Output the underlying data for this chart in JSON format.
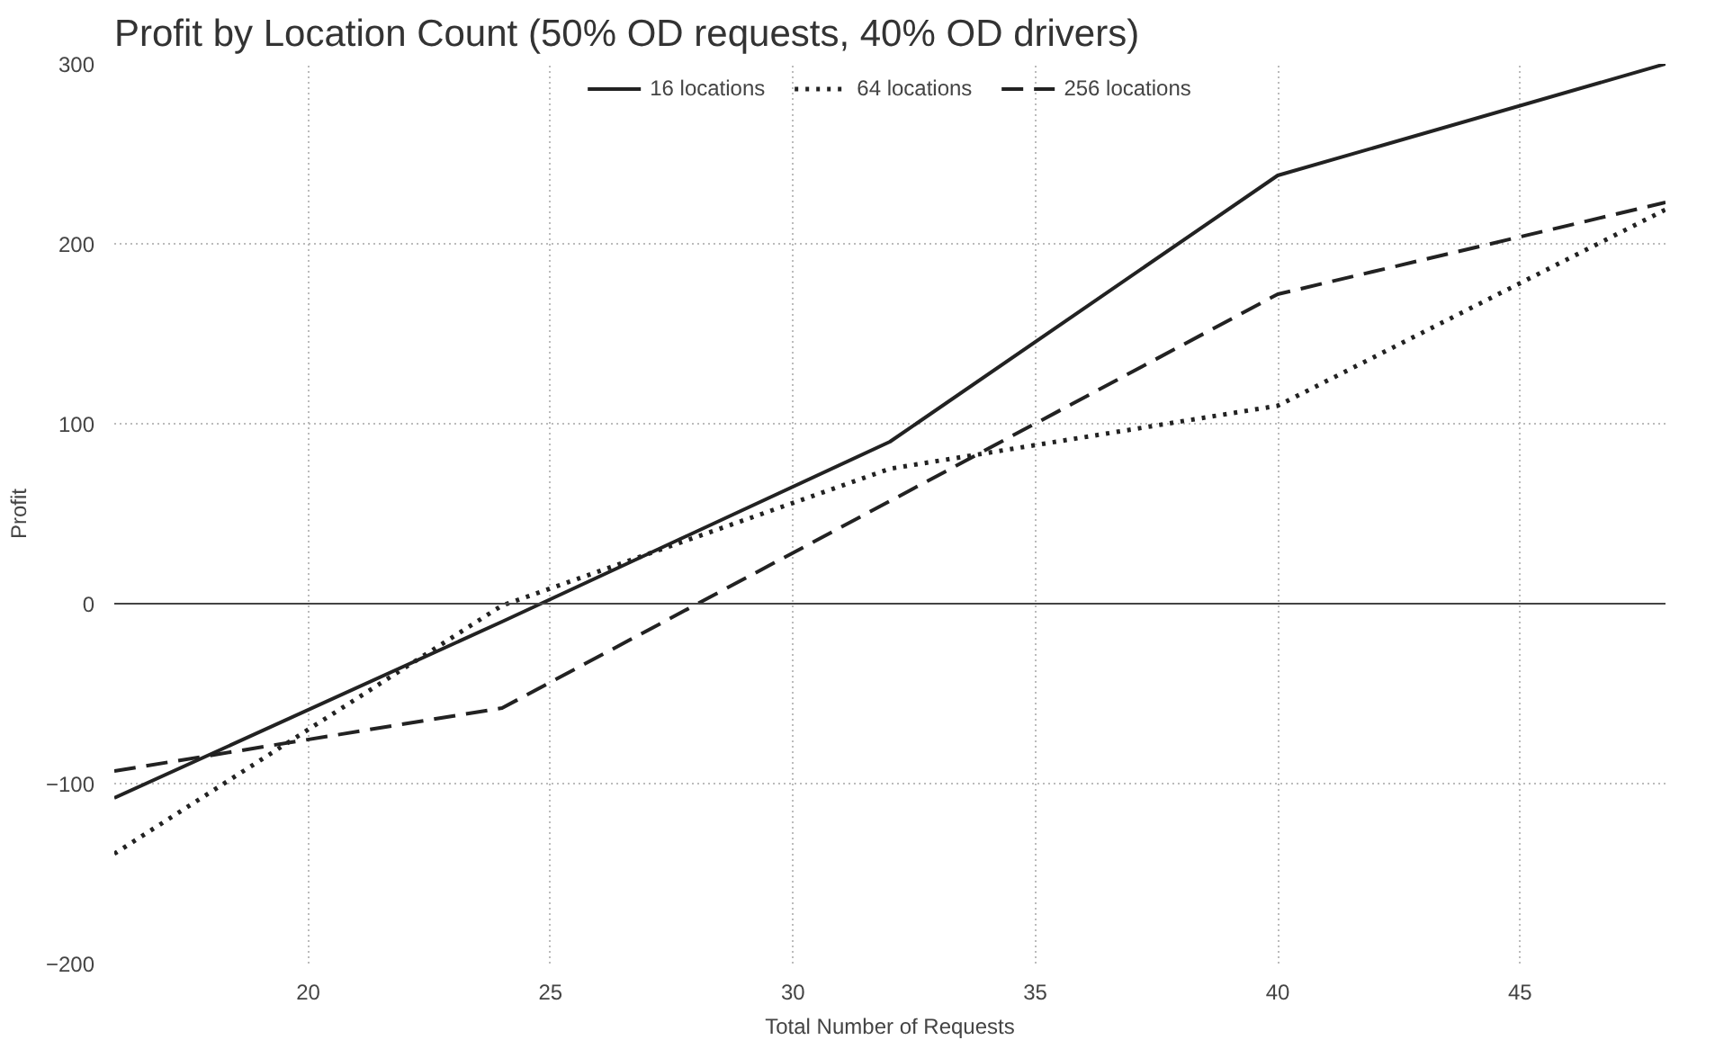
{
  "chart_data": {
    "type": "line",
    "title": "Profit by Location Count (50% OD requests, 40% OD drivers)",
    "xlabel": "Total Number of Requests",
    "ylabel": "Profit",
    "x": [
      16,
      24,
      32,
      40,
      48
    ],
    "series": [
      {
        "name": "16 locations",
        "color": "#222222",
        "line_style": "solid",
        "values": [
          -108,
          -10,
          90,
          238,
          300
        ]
      },
      {
        "name": "64 locations",
        "color": "#222222",
        "line_style": "dotted",
        "values": [
          -139,
          -1,
          75,
          110,
          219
        ]
      },
      {
        "name": "256 locations",
        "color": "#222222",
        "line_style": "dashed",
        "values": [
          -93,
          -58,
          57,
          172,
          223
        ]
      }
    ],
    "xlim": [
      16,
      48
    ],
    "ylim": [
      -200,
      300
    ],
    "xticks": [
      20,
      25,
      30,
      35,
      40,
      45
    ],
    "yticks": [
      -200,
      -100,
      0,
      100,
      200,
      300
    ],
    "ref_lines": [
      {
        "axis": "y",
        "value": 0,
        "color": "#444444"
      }
    ],
    "grid": true,
    "legend": "top",
    "marker": "none"
  }
}
